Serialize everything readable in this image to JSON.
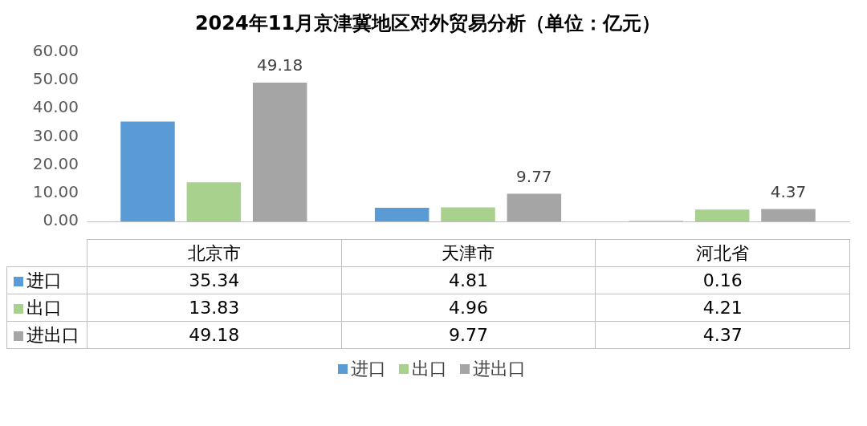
{
  "chart_data": {
    "type": "bar",
    "title": "2024年11月京津冀地区对外贸易分析（单位：亿元）",
    "categories": [
      "北京市",
      "天津市",
      "河北省"
    ],
    "series": [
      {
        "name": "进口",
        "color": "#5b9bd5",
        "values": [
          35.34,
          4.81,
          0.16
        ]
      },
      {
        "name": "出口",
        "color": "#a9d18e",
        "values": [
          13.83,
          4.96,
          4.21
        ]
      },
      {
        "name": "进出口",
        "color": "#a5a5a5",
        "values": [
          49.18,
          9.77,
          4.37
        ]
      }
    ],
    "annotations": [
      "49.18",
      "9.77",
      "4.37"
    ],
    "ylim": [
      0,
      60
    ],
    "yticks": [
      {
        "value": 0,
        "label": "0.00"
      },
      {
        "value": 10,
        "label": "10.00"
      },
      {
        "value": 20,
        "label": "20.00"
      },
      {
        "value": 30,
        "label": "30.00"
      },
      {
        "value": 40,
        "label": "40.00"
      },
      {
        "value": 50,
        "label": "50.00"
      },
      {
        "value": 60,
        "label": "60.00"
      }
    ],
    "data_labels": true,
    "legend": "bottom"
  }
}
